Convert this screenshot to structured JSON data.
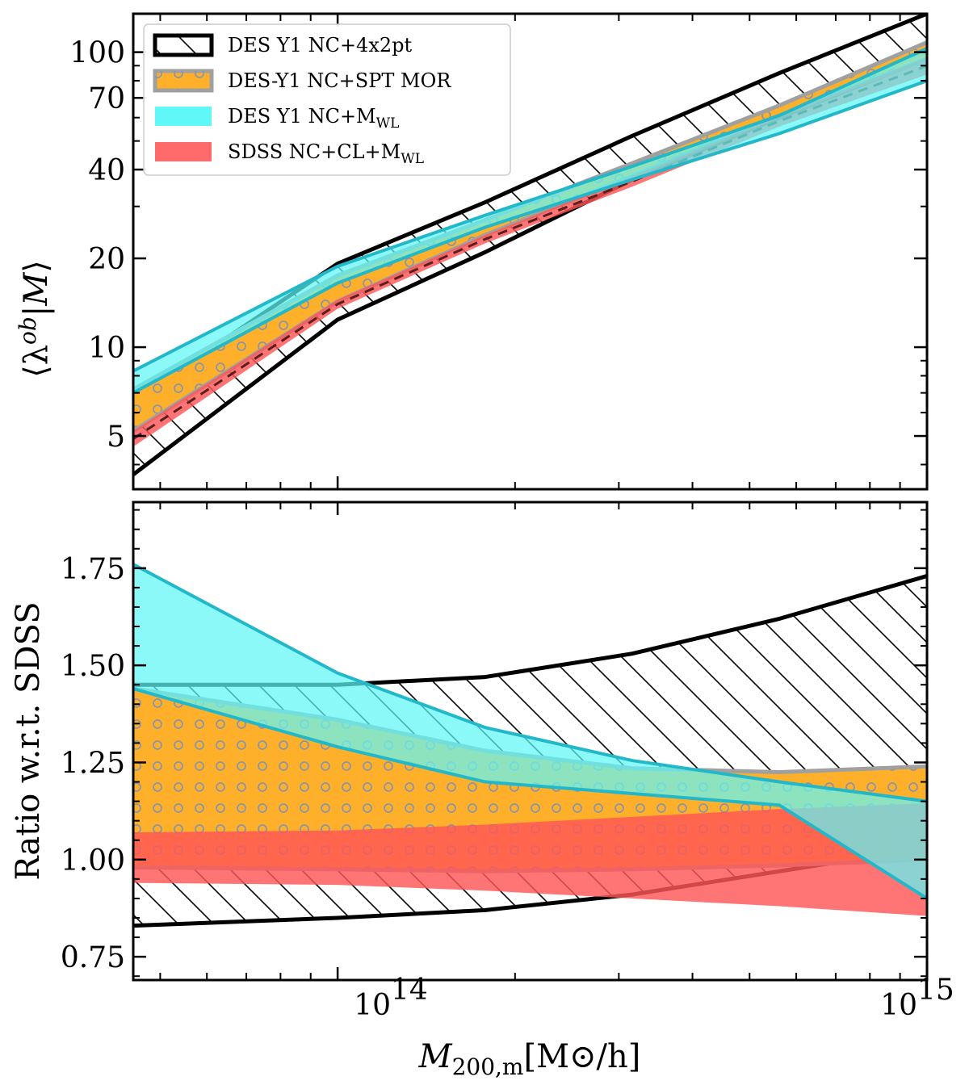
{
  "figure": {
    "xlabel_main": "M",
    "xlabel_sub": "200,m",
    "xlabel_units": "[M⊙/h]",
    "x_tick_labels": [
      {
        "base": "10",
        "exp": "14"
      },
      {
        "base": "10",
        "exp": "15"
      }
    ]
  },
  "legend": {
    "items": [
      {
        "label": "DES Y1 NC+4x2pt",
        "sub": ""
      },
      {
        "label": "DES-Y1 NC+SPT MOR",
        "sub": ""
      },
      {
        "label": "DES Y1 NC+M",
        "sub": "WL"
      },
      {
        "label": "SDSS NC+CL+M",
        "sub": "WL"
      }
    ]
  },
  "chart_data": [
    {
      "type": "area",
      "title": "",
      "xlabel": "M_{200,m} [M_sun/h]",
      "ylabel": "⟨λ^{ob}|M⟩",
      "xscale": "log",
      "yscale": "log",
      "xlim": [
        45000000000000.0,
        1000000000000000.0
      ],
      "ylim": [
        3.3,
        135
      ],
      "y_ticks": [
        5,
        10,
        20,
        40,
        70,
        100
      ],
      "y_tick_labels": [
        "5",
        "10",
        "20",
        "40",
        "70",
        "100"
      ],
      "x": [
        45000000000000.0,
        100000000000000.0,
        178000000000000.0,
        316000000000000.0,
        562000000000000.0,
        1000000000000000.0
      ],
      "series": [
        {
          "name": "DES Y1 NC+4x2pt",
          "lower": [
            3.7,
            12.4,
            21.0,
            37.0,
            60.0,
            95.0
          ],
          "upper": [
            6.6,
            19.2,
            31.0,
            52.0,
            85.0,
            135.0
          ]
        },
        {
          "name": "DES-Y1 NC+SPT MOR",
          "lower": [
            5.2,
            14.3,
            24.0,
            38.0,
            61.0,
            95.0
          ],
          "upper": [
            7.2,
            17.5,
            27.0,
            42.0,
            66.0,
            108.0
          ]
        },
        {
          "name": "DES Y1 NC+M_WL",
          "lower": [
            7.0,
            16.5,
            25.5,
            37.0,
            53.0,
            80.0
          ],
          "upper": [
            8.3,
            18.8,
            28.0,
            41.0,
            61.0,
            103.0
          ]
        },
        {
          "name": "SDSS NC+CL+M_WL",
          "lower": [
            4.6,
            13.5,
            22.5,
            35.0,
            56.0,
            84.0
          ],
          "upper": [
            5.2,
            14.5,
            24.0,
            38.0,
            61.0,
            96.0
          ]
        }
      ]
    },
    {
      "type": "area",
      "title": "",
      "xlabel": "M_{200,m} [M_sun/h]",
      "ylabel": "Ratio w.r.t. SDSS",
      "xscale": "log",
      "yscale": "linear",
      "xlim": [
        45000000000000.0,
        1000000000000000.0
      ],
      "ylim": [
        0.69,
        1.92
      ],
      "y_ticks": [
        0.75,
        1.0,
        1.25,
        1.5,
        1.75
      ],
      "y_tick_labels": [
        "0.75",
        "1.00",
        "1.25",
        "1.50",
        "1.75"
      ],
      "x": [
        45000000000000.0,
        100000000000000.0,
        178000000000000.0,
        316000000000000.0,
        562000000000000.0,
        1000000000000000.0
      ],
      "series": [
        {
          "name": "DES Y1 NC+4x2pt",
          "lower": [
            0.83,
            0.85,
            0.87,
            0.91,
            0.97,
            1.03
          ],
          "upper": [
            1.45,
            1.45,
            1.47,
            1.53,
            1.62,
            1.73
          ]
        },
        {
          "name": "DES-Y1 NC+SPT MOR",
          "lower": [
            0.98,
            0.975,
            0.97,
            0.975,
            0.985,
            1.0
          ],
          "upper": [
            1.44,
            1.36,
            1.28,
            1.235,
            1.225,
            1.24
          ]
        },
        {
          "name": "DES Y1 NC+M_WL",
          "lower": [
            1.44,
            1.29,
            1.2,
            1.17,
            1.14,
            0.9
          ],
          "upper": [
            1.76,
            1.48,
            1.34,
            1.255,
            1.2,
            1.15
          ]
        },
        {
          "name": "SDSS NC+CL+M_WL",
          "lower": [
            0.94,
            0.935,
            0.92,
            0.9,
            0.88,
            0.855
          ],
          "upper": [
            1.07,
            1.075,
            1.09,
            1.11,
            1.13,
            1.145
          ]
        }
      ]
    }
  ]
}
